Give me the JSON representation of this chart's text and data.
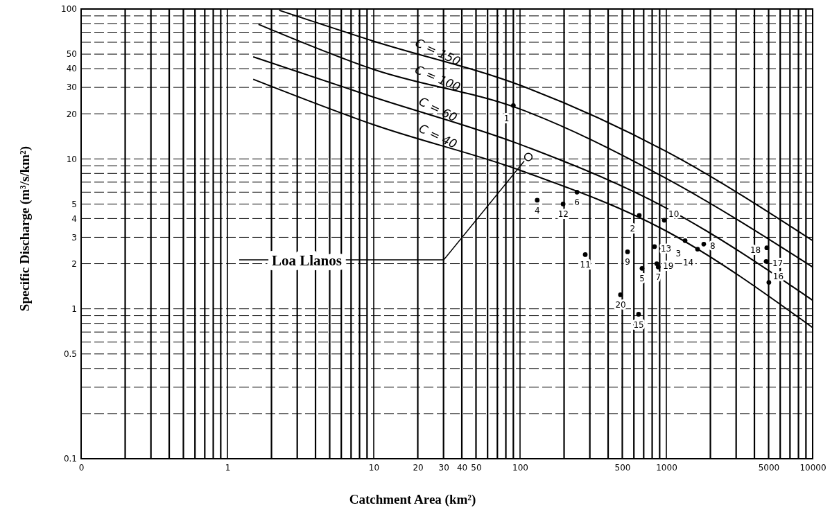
{
  "chart_data": {
    "type": "line",
    "xlabel": "Catchment Area   (km²)",
    "ylabel": "Specific Discharge  (m³/s/km²)",
    "log": "xy",
    "grid": true,
    "xlim": [
      0.1,
      10000
    ],
    "xticks": [
      {
        "value": 0.1,
        "label": "0"
      },
      1,
      10,
      20,
      30,
      40,
      50,
      100,
      500,
      1000,
      5000,
      10000
    ],
    "ylim": [
      0.1,
      100
    ],
    "yticks": [
      0.1,
      0.5,
      1,
      2,
      3,
      4,
      5,
      10,
      20,
      30,
      40,
      50,
      100
    ],
    "series": [
      {
        "name": "C = 150",
        "color": "#000000",
        "x": [
          2.26,
          10,
          100,
          1000,
          10000
        ],
        "values": [
          98,
          61,
          31,
          11.2,
          2.85
        ]
      },
      {
        "name": "C = 100",
        "color": "#000000",
        "x": [
          1.63,
          10,
          100,
          1000,
          10000
        ],
        "values": [
          79,
          39.5,
          21.5,
          7.4,
          1.9
        ]
      },
      {
        "name": "C = 60",
        "color": "#000000",
        "x": [
          1.5,
          10,
          100,
          1000,
          10000
        ],
        "values": [
          48,
          25.8,
          12.5,
          4.7,
          1.14
        ]
      },
      {
        "name": "C = 40",
        "color": "#000000",
        "x": [
          1.5,
          10,
          100,
          1000,
          10000
        ],
        "values": [
          34,
          16.9,
          8.4,
          3.3,
          0.75
        ]
      },
      {
        "type": "scatter",
        "marker": "circle",
        "color": "#000000",
        "x": [
          90,
          653,
          1343,
          131,
          682,
          245,
          880,
          1803,
          543,
          968,
          279,
          197,
          830,
          1634,
          646,
          5020,
          4810,
          4860,
          860,
          486
        ],
        "values": [
          22.7,
          4.2,
          2.85,
          5.3,
          1.86,
          6.0,
          1.9,
          2.7,
          2.4,
          3.9,
          2.3,
          5.0,
          2.6,
          2.5,
          0.92,
          1.5,
          2.07,
          2.55,
          2.0,
          1.24
        ]
      },
      {
        "name": "Loa Llanos",
        "type": "scatter",
        "marker": "circle",
        "color": "#000000",
        "x": [
          114
        ],
        "values": [
          10.3
        ]
      }
    ],
    "annotations": [
      {
        "text": "1",
        "x": 90,
        "y": 22.7
      },
      {
        "text": "2",
        "x": 653,
        "y": 4.2
      },
      {
        "text": "3",
        "x": 1343,
        "y": 2.85
      },
      {
        "text": "4",
        "x": 131,
        "y": 5.3
      },
      {
        "text": "5",
        "x": 682,
        "y": 1.86
      },
      {
        "text": "6",
        "x": 245,
        "y": 6.0
      },
      {
        "text": "7",
        "x": 880,
        "y": 1.9
      },
      {
        "text": "8",
        "x": 1803,
        "y": 2.7
      },
      {
        "text": "9",
        "x": 543,
        "y": 2.4
      },
      {
        "text": "10",
        "x": 968,
        "y": 3.9
      },
      {
        "text": "11",
        "x": 279,
        "y": 2.3
      },
      {
        "text": "12",
        "x": 197,
        "y": 5.0
      },
      {
        "text": "13",
        "x": 830,
        "y": 2.6
      },
      {
        "text": "14",
        "x": 1634,
        "y": 2.5
      },
      {
        "text": "15",
        "x": 646,
        "y": 0.92
      },
      {
        "text": "16",
        "x": 5020,
        "y": 1.5
      },
      {
        "text": "17",
        "x": 4810,
        "y": 2.07
      },
      {
        "text": "18",
        "x": 4860,
        "y": 2.55
      },
      {
        "text": "19",
        "x": 860,
        "y": 2.0
      },
      {
        "text": "20",
        "x": 486,
        "y": 1.24
      }
    ]
  }
}
